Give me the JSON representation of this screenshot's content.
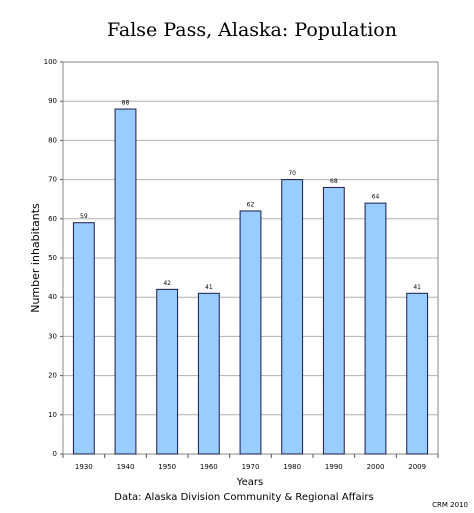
{
  "chart_data": {
    "type": "bar",
    "title": "False Pass, Alaska:  Population",
    "categories": [
      "1930",
      "1940",
      "1950",
      "1960",
      "1970",
      "1980",
      "1990",
      "2000",
      "2009"
    ],
    "values": [
      59,
      88,
      42,
      41,
      62,
      70,
      68,
      64,
      41
    ],
    "color": "#99ccff",
    "x_label": "Years",
    "y_label": "Number inhabitants",
    "note": "Data: Alaska Division Community & Regional Affairs",
    "credit": "CRM 2010",
    "ylim": [
      0,
      100
    ],
    "yticks": [
      0,
      10,
      20,
      30,
      40,
      50,
      60,
      70,
      80,
      90,
      100
    ],
    "grid": true
  }
}
